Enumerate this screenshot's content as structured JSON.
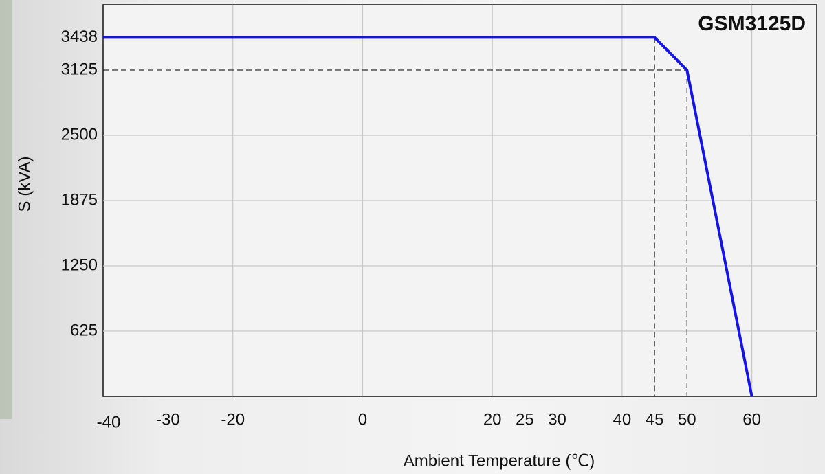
{
  "chart_data": {
    "type": "line",
    "title": "GSM3125D",
    "x_label": "Ambient Temperature (℃)",
    "y_label": "S (kVA)",
    "x": [
      -40,
      45,
      50,
      60
    ],
    "series": [
      {
        "name": "S",
        "color": "#1414e6",
        "values": [
          3438,
          3438,
          3125,
          0
        ]
      }
    ],
    "xlim": [
      -40,
      70
    ],
    "ylim": [
      0,
      3750
    ],
    "xticks": [
      -40,
      -30,
      -20,
      0,
      20,
      25,
      30,
      40,
      45,
      50,
      60
    ],
    "yticks": [
      625,
      1250,
      1875,
      2500,
      3125,
      3438
    ],
    "grid": true,
    "guides": true
  }
}
